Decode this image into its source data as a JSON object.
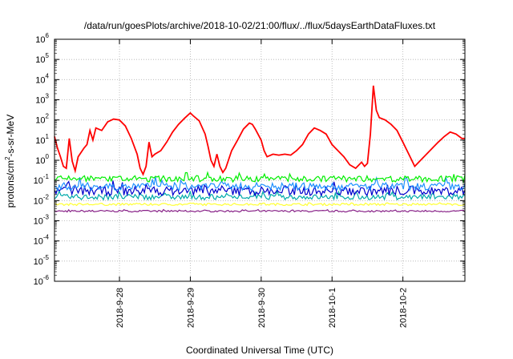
{
  "chart_data": {
    "type": "line",
    "title": "/data/run/goesPlots/archive/2018-10-02/21:00/flux/../flux/5daysEarthDataFluxes.txt",
    "xlabel": "Coordinated Universal Time (UTC)",
    "ylabel": {
      "main": "protons/cm",
      "sup": "2",
      "tail": "-s-sr-MeV"
    },
    "y_scale": "log",
    "ylim_exponent": [
      -6,
      6
    ],
    "y_ticks": [
      {
        "base": "10",
        "exp": "6",
        "value": 1000000.0
      },
      {
        "base": "10",
        "exp": "5",
        "value": 100000.0
      },
      {
        "base": "10",
        "exp": "4",
        "value": 10000.0
      },
      {
        "base": "10",
        "exp": "3",
        "value": 1000.0
      },
      {
        "base": "10",
        "exp": "2",
        "value": 100.0
      },
      {
        "base": "10",
        "exp": "1",
        "value": 10.0
      },
      {
        "base": "10",
        "exp": "0",
        "value": 1.0
      },
      {
        "base": "10",
        "exp": "-1",
        "value": 0.1
      },
      {
        "base": "10",
        "exp": "-2",
        "value": 0.01
      },
      {
        "base": "10",
        "exp": "-3",
        "value": 0.001
      },
      {
        "base": "10",
        "exp": "-4",
        "value": 0.0001
      },
      {
        "base": "10",
        "exp": "-5",
        "value": 1e-05
      },
      {
        "base": "10",
        "exp": "-6",
        "value": 1e-06
      }
    ],
    "x_range_days": [
      "2018-09-27T02:00",
      "2018-10-02T21:00"
    ],
    "x_ticks": [
      {
        "label": "2018-9-28",
        "date": "2018-09-28"
      },
      {
        "label": "2018-9-29",
        "date": "2018-09-29"
      },
      {
        "label": "2018-9-30",
        "date": "2018-09-30"
      },
      {
        "label": "2018-10-1",
        "date": "2018-10-01"
      },
      {
        "label": "2018-10-2",
        "date": "2018-10-02"
      }
    ],
    "grid": true,
    "series": [
      {
        "color": "#ff0000",
        "points": [
          [
            "2018-09-27T02:00",
            15
          ],
          [
            "2018-09-27T03:00",
            4
          ],
          [
            "2018-09-27T04:00",
            1.5
          ],
          [
            "2018-09-27T05:00",
            0.5
          ],
          [
            "2018-09-27T06:00",
            0.4
          ],
          [
            "2018-09-27T07:00",
            12
          ],
          [
            "2018-09-27T08:00",
            0.9
          ],
          [
            "2018-09-27T09:00",
            0.3
          ],
          [
            "2018-09-27T10:00",
            1.5
          ],
          [
            "2018-09-27T12:00",
            4
          ],
          [
            "2018-09-27T13:00",
            6
          ],
          [
            "2018-09-27T14:00",
            30
          ],
          [
            "2018-09-27T15:00",
            10
          ],
          [
            "2018-09-27T16:00",
            40
          ],
          [
            "2018-09-27T18:00",
            30
          ],
          [
            "2018-09-27T20:00",
            80
          ],
          [
            "2018-09-27T22:00",
            110
          ],
          [
            "2018-09-28T00:00",
            100
          ],
          [
            "2018-09-28T02:00",
            50
          ],
          [
            "2018-09-28T04:00",
            12
          ],
          [
            "2018-09-28T06:00",
            2
          ],
          [
            "2018-09-28T07:00",
            0.4
          ],
          [
            "2018-09-28T08:00",
            0.2
          ],
          [
            "2018-09-28T09:00",
            0.5
          ],
          [
            "2018-09-28T10:00",
            8
          ],
          [
            "2018-09-28T11:00",
            1.5
          ],
          [
            "2018-09-28T12:00",
            2
          ],
          [
            "2018-09-28T14:00",
            3
          ],
          [
            "2018-09-28T16:00",
            8
          ],
          [
            "2018-09-28T18:00",
            25
          ],
          [
            "2018-09-28T20:00",
            60
          ],
          [
            "2018-09-28T22:00",
            120
          ],
          [
            "2018-09-29T00:00",
            220
          ],
          [
            "2018-09-29T01:00",
            160
          ],
          [
            "2018-09-29T03:00",
            90
          ],
          [
            "2018-09-29T05:00",
            20
          ],
          [
            "2018-09-29T06:00",
            5
          ],
          [
            "2018-09-29T07:00",
            1
          ],
          [
            "2018-09-29T08:00",
            0.5
          ],
          [
            "2018-09-29T09:00",
            2
          ],
          [
            "2018-09-29T10:00",
            0.5
          ],
          [
            "2018-09-29T11:00",
            0.25
          ],
          [
            "2018-09-29T12:00",
            0.4
          ],
          [
            "2018-09-29T14:00",
            3
          ],
          [
            "2018-09-29T16:00",
            10
          ],
          [
            "2018-09-29T18:00",
            35
          ],
          [
            "2018-09-29T20:00",
            70
          ],
          [
            "2018-09-29T21:00",
            60
          ],
          [
            "2018-09-29T22:00",
            35
          ],
          [
            "2018-09-30T00:00",
            10
          ],
          [
            "2018-09-30T01:00",
            3
          ],
          [
            "2018-09-30T02:00",
            1.5
          ],
          [
            "2018-09-30T04:00",
            2
          ],
          [
            "2018-09-30T06:00",
            1.8
          ],
          [
            "2018-09-30T08:00",
            2
          ],
          [
            "2018-09-30T10:00",
            1.8
          ],
          [
            "2018-09-30T12:00",
            3
          ],
          [
            "2018-09-30T14:00",
            6
          ],
          [
            "2018-09-30T16:00",
            20
          ],
          [
            "2018-09-30T18:00",
            40
          ],
          [
            "2018-09-30T20:00",
            30
          ],
          [
            "2018-09-30T22:00",
            20
          ],
          [
            "2018-10-01T00:00",
            6
          ],
          [
            "2018-10-01T02:00",
            3
          ],
          [
            "2018-10-01T04:00",
            1.5
          ],
          [
            "2018-10-01T06:00",
            0.6
          ],
          [
            "2018-10-01T08:00",
            0.4
          ],
          [
            "2018-10-01T10:00",
            0.8
          ],
          [
            "2018-10-01T11:00",
            0.5
          ],
          [
            "2018-10-01T12:00",
            0.7
          ],
          [
            "2018-10-01T13:00",
            20
          ],
          [
            "2018-10-01T14:00",
            5000
          ],
          [
            "2018-10-01T15:00",
            300
          ],
          [
            "2018-10-01T16:00",
            130
          ],
          [
            "2018-10-01T18:00",
            100
          ],
          [
            "2018-10-01T20:00",
            60
          ],
          [
            "2018-10-01T22:00",
            30
          ],
          [
            "2018-10-02T00:00",
            8
          ],
          [
            "2018-10-02T02:00",
            2
          ],
          [
            "2018-10-02T04:00",
            0.5
          ],
          [
            "2018-10-02T06:00",
            1
          ],
          [
            "2018-10-02T08:00",
            2
          ],
          [
            "2018-10-02T10:00",
            4
          ],
          [
            "2018-10-02T12:00",
            8
          ],
          [
            "2018-10-02T14:00",
            15
          ],
          [
            "2018-10-02T16:00",
            25
          ],
          [
            "2018-10-02T18:00",
            20
          ],
          [
            "2018-10-02T20:00",
            12
          ],
          [
            "2018-10-02T21:00",
            12
          ]
        ]
      },
      {
        "color": "#00ee00",
        "typical": 0.12,
        "low": 0.07,
        "high": 0.25
      },
      {
        "color": "#1e90ff",
        "typical": 0.05,
        "low": 0.03,
        "high": 0.15
      },
      {
        "color": "#0000cc",
        "typical": 0.03,
        "low": 0.015,
        "high": 0.1
      },
      {
        "color": "#00aaaa",
        "typical": 0.015,
        "low": 0.01,
        "high": 0.03
      },
      {
        "color": "#ffff33",
        "typical": 0.0065,
        "low": 0.005,
        "high": 0.008
      },
      {
        "color": "#882288",
        "typical": 0.003,
        "low": 0.0025,
        "high": 0.0036
      }
    ]
  }
}
